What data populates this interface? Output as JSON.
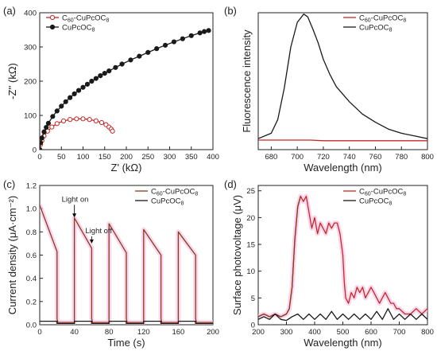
{
  "colors": {
    "series_red": "#c62828",
    "series_brown": "#8b3a1c",
    "series_black": "#1a1a1a",
    "axis": "#222222",
    "glow_pink": "#f6c6e6",
    "glow_cyan": "#a8e6f4"
  },
  "chart_data": [
    {
      "panel_label": "(a)",
      "type": "line",
      "xlabel": "Z' (kΩ)",
      "ylabel": "-Z'' (kΩ)",
      "xlim": [
        0,
        400
      ],
      "ylim": [
        0,
        400
      ],
      "xticks": [
        0,
        50,
        100,
        150,
        200,
        250,
        300,
        350,
        400
      ],
      "yticks": [
        0,
        100,
        200,
        300,
        400
      ],
      "legend_position": "top-left",
      "series": [
        {
          "name": "C60-CuPcOC8",
          "legend": {
            "base": "C",
            "sub1": "60",
            "mid": "-CuPcOC",
            "sub2": "8"
          },
          "color_key": "series_red",
          "markers": "open-circle",
          "x": [
            0,
            2,
            5,
            10,
            18,
            28,
            40,
            55,
            70,
            85,
            100,
            115,
            130,
            143,
            153,
            160,
            165,
            168
          ],
          "y": [
            0,
            15,
            26,
            40,
            54,
            66,
            76,
            84,
            88,
            90,
            90,
            88,
            84,
            79,
            73,
            66,
            60,
            54
          ]
        },
        {
          "name": "CuPcOC8",
          "legend": {
            "base": "CuPcOC",
            "sub1": "",
            "mid": "",
            "sub2": "8"
          },
          "color_key": "series_black",
          "markers": "filled-circle",
          "x": [
            0,
            2,
            5,
            10,
            15,
            20,
            30,
            40,
            50,
            60,
            70,
            80,
            90,
            100,
            110,
            120,
            130,
            140,
            150,
            160,
            175,
            190,
            210,
            230,
            250,
            270,
            290,
            310,
            330,
            350,
            370,
            380,
            390
          ],
          "y": [
            0,
            20,
            34,
            52,
            65,
            77,
            97,
            113,
            127,
            140,
            152,
            163,
            173,
            182,
            191,
            200,
            208,
            216,
            223,
            230,
            240,
            250,
            262,
            273,
            284,
            295,
            305,
            315,
            324,
            333,
            341,
            345,
            348
          ]
        }
      ]
    },
    {
      "panel_label": "(b)",
      "type": "line",
      "xlabel": "Wavelength (nm)",
      "ylabel": "Fluorescence intensity",
      "xlim": [
        670,
        800
      ],
      "ylim": [
        0,
        1
      ],
      "xticks": [
        680,
        700,
        720,
        740,
        760,
        780,
        800
      ],
      "yticks_shown": false,
      "legend_position": "top-right",
      "series": [
        {
          "name": "C60-CuPcOC8",
          "legend": {
            "base": "C",
            "sub1": "60",
            "mid": "-CuPcOC",
            "sub2": "8"
          },
          "color_key": "series_red",
          "x": [
            670,
            680,
            690,
            700,
            710,
            720,
            730,
            740,
            750,
            760,
            770,
            780,
            790,
            800
          ],
          "y": [
            0.07,
            0.07,
            0.07,
            0.07,
            0.07,
            0.065,
            0.065,
            0.065,
            0.065,
            0.065,
            0.065,
            0.065,
            0.065,
            0.065
          ]
        },
        {
          "name": "CuPcOC8",
          "legend": {
            "base": "CuPcOC",
            "sub1": "",
            "mid": "",
            "sub2": "8"
          },
          "color_key": "series_black",
          "x": [
            670,
            680,
            685,
            690,
            695,
            700,
            705,
            708,
            712,
            716,
            720,
            725,
            730,
            740,
            750,
            760,
            770,
            780,
            790,
            800
          ],
          "y": [
            0.08,
            0.12,
            0.22,
            0.45,
            0.75,
            0.93,
            0.99,
            0.97,
            0.88,
            0.78,
            0.66,
            0.55,
            0.46,
            0.35,
            0.26,
            0.2,
            0.15,
            0.12,
            0.1,
            0.08
          ]
        }
      ]
    },
    {
      "panel_label": "(c)",
      "type": "line",
      "xlabel": "Time (s)",
      "ylabel": "Current density (μA·cm⁻²)",
      "xlim": [
        0,
        200
      ],
      "ylim": [
        0,
        1.2
      ],
      "xticks": [
        0,
        40,
        80,
        120,
        160,
        200
      ],
      "yticks": [
        0.0,
        0.2,
        0.4,
        0.6,
        0.8,
        1.0,
        1.2
      ],
      "legend_position": "top-right",
      "annotations": [
        {
          "text": "Light on",
          "x": 40,
          "y": 0.91
        },
        {
          "text": "Light off",
          "x": 60,
          "y": 0.7
        }
      ],
      "series": [
        {
          "name": "C60-CuPcOC8",
          "legend": {
            "base": "C",
            "sub1": "60",
            "mid": "-CuPcOC",
            "sub2": "8"
          },
          "color_key": "series_brown",
          "x": [
            0,
            20,
            20,
            21,
            40,
            40,
            60,
            60,
            61,
            80,
            80,
            100,
            100,
            101,
            120,
            120,
            140,
            140,
            141,
            160,
            160,
            180,
            180,
            181,
            200
          ],
          "y": [
            1.03,
            0.63,
            0.05,
            0.02,
            0.02,
            0.92,
            0.66,
            0.05,
            0.02,
            0.02,
            0.87,
            0.62,
            0.05,
            0.02,
            0.02,
            0.82,
            0.6,
            0.05,
            0.02,
            0.02,
            0.8,
            0.6,
            0.05,
            0.02,
            0.02
          ]
        },
        {
          "name": "CuPcOC8",
          "legend": {
            "base": "CuPcOC",
            "sub1": "",
            "mid": "",
            "sub2": "8"
          },
          "color_key": "series_black",
          "x": [
            0,
            20,
            20,
            40,
            40,
            60,
            60,
            80,
            80,
            100,
            100,
            120,
            120,
            140,
            140,
            160,
            160,
            180,
            180,
            200
          ],
          "y": [
            0.03,
            0.03,
            0.01,
            0.01,
            0.03,
            0.03,
            0.01,
            0.01,
            0.03,
            0.03,
            0.01,
            0.01,
            0.03,
            0.03,
            0.01,
            0.01,
            0.03,
            0.03,
            0.01,
            0.01
          ]
        }
      ]
    },
    {
      "panel_label": "(d)",
      "type": "line",
      "xlabel": "Wavelength (nm)",
      "ylabel": "Surface photovoltage (μV)",
      "xlim": [
        200,
        800
      ],
      "ylim": [
        0,
        26
      ],
      "xticks": [
        200,
        300,
        400,
        500,
        600,
        700,
        800
      ],
      "yticks": [
        0,
        5,
        10,
        15,
        20,
        25
      ],
      "legend_position": "top-right",
      "series": [
        {
          "name": "C60-CuPcOC8",
          "legend": {
            "base": "C",
            "sub1": "60",
            "mid": "-CuPcOC",
            "sub2": "8"
          },
          "color_key": "series_red",
          "color_secondary_key": "series_brown",
          "x": [
            200,
            220,
            240,
            260,
            280,
            300,
            310,
            320,
            330,
            340,
            350,
            360,
            370,
            380,
            390,
            400,
            410,
            420,
            430,
            440,
            450,
            460,
            470,
            480,
            490,
            500,
            505,
            510,
            520,
            530,
            540,
            550,
            560,
            570,
            580,
            590,
            600,
            610,
            620,
            630,
            640,
            650,
            660,
            670,
            680,
            690,
            700,
            720,
            740,
            760,
            780,
            800
          ],
          "y": [
            1.5,
            2,
            1.5,
            2,
            1.5,
            2,
            3,
            7,
            16,
            22,
            24,
            23,
            24,
            21,
            18,
            20,
            17,
            19,
            18,
            17,
            19,
            18,
            19,
            19,
            17,
            13,
            8,
            5,
            4,
            6,
            5,
            7,
            6,
            7,
            5,
            6,
            7,
            6,
            5,
            4,
            5,
            6,
            5,
            4,
            4,
            3,
            3,
            2,
            2,
            3,
            2,
            3
          ]
        },
        {
          "name": "CuPcOC8",
          "legend": {
            "base": "CuPcOC",
            "sub1": "",
            "mid": "",
            "sub2": "8"
          },
          "color_key": "series_black",
          "x": [
            200,
            220,
            240,
            260,
            280,
            300,
            320,
            340,
            360,
            380,
            400,
            420,
            440,
            460,
            480,
            500,
            520,
            540,
            560,
            580,
            600,
            620,
            640,
            660,
            680,
            700,
            720,
            740,
            760,
            780,
            800
          ],
          "y": [
            1,
            1.5,
            1,
            2,
            1,
            0.8,
            1.5,
            2,
            1,
            2,
            1,
            2,
            1,
            2.5,
            1,
            2,
            1,
            2,
            1,
            2,
            1,
            2.5,
            1,
            3,
            1,
            2,
            1,
            2,
            1,
            2,
            1
          ]
        }
      ]
    }
  ]
}
